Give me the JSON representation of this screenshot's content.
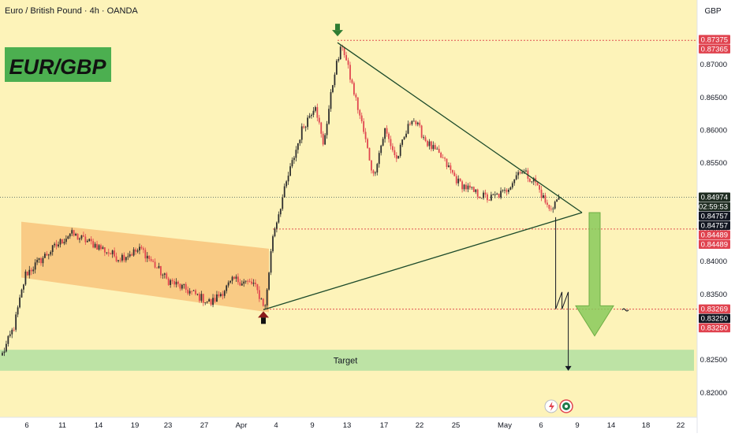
{
  "header": {
    "symbol_title": "Euro / British Pound · 4h · OANDA",
    "currency": "GBP",
    "badge": "EUR/GBP"
  },
  "colors": {
    "background": "#fdf3b9",
    "up": "#2e2e2e",
    "down": "#e04650",
    "channel_fill": "#f8c178",
    "target_zone": "#bde3a5",
    "arrow": "#88c95a",
    "badge_bg": "#4caf50",
    "pivot_up": "#8b1a1a",
    "pivot_down": "#2e7d32",
    "line": "#1c4a2a",
    "dotted_red": "#e05050"
  },
  "chart_data": {
    "type": "candlestick",
    "symbol": "Euro / British Pound",
    "timeframe": "4h",
    "source": "OANDA",
    "ylabel": "GBP",
    "ylim": [
      0.8162,
      0.8798
    ],
    "y_ticks": [
      "0.87000",
      "0.86500",
      "0.86000",
      "0.85500",
      "0.84500",
      "0.84000",
      "0.83500",
      "0.82500",
      "0.82000"
    ],
    "x_ticks": [
      "6",
      "11",
      "14",
      "19",
      "23",
      "27",
      "Apr",
      "4",
      "9",
      "13",
      "17",
      "22",
      "25",
      "May",
      "6",
      "9",
      "14",
      "18",
      "22"
    ],
    "path_points": [
      {
        "i": 0,
        "p": 0.8258
      },
      {
        "i": 6,
        "p": 0.83
      },
      {
        "i": 12,
        "p": 0.838
      },
      {
        "i": 22,
        "p": 0.8408
      },
      {
        "i": 35,
        "p": 0.8442
      },
      {
        "i": 48,
        "p": 0.8425
      },
      {
        "i": 60,
        "p": 0.8405
      },
      {
        "i": 72,
        "p": 0.8418
      },
      {
        "i": 85,
        "p": 0.8372
      },
      {
        "i": 98,
        "p": 0.8352
      },
      {
        "i": 108,
        "p": 0.8336
      },
      {
        "i": 120,
        "p": 0.8372
      },
      {
        "i": 130,
        "p": 0.8365
      },
      {
        "i": 136,
        "p": 0.833
      },
      {
        "i": 140,
        "p": 0.844
      },
      {
        "i": 148,
        "p": 0.853
      },
      {
        "i": 155,
        "p": 0.86
      },
      {
        "i": 162,
        "p": 0.864
      },
      {
        "i": 166,
        "p": 0.8575
      },
      {
        "i": 172,
        "p": 0.869
      },
      {
        "i": 176,
        "p": 0.873
      },
      {
        "i": 180,
        "p": 0.868
      },
      {
        "i": 186,
        "p": 0.861
      },
      {
        "i": 192,
        "p": 0.853
      },
      {
        "i": 198,
        "p": 0.86
      },
      {
        "i": 204,
        "p": 0.8555
      },
      {
        "i": 212,
        "p": 0.862
      },
      {
        "i": 220,
        "p": 0.858
      },
      {
        "i": 228,
        "p": 0.8555
      },
      {
        "i": 236,
        "p": 0.852
      },
      {
        "i": 244,
        "p": 0.8505
      },
      {
        "i": 252,
        "p": 0.8495
      },
      {
        "i": 260,
        "p": 0.8505
      },
      {
        "i": 268,
        "p": 0.854
      },
      {
        "i": 276,
        "p": 0.852
      },
      {
        "i": 283,
        "p": 0.8478
      },
      {
        "i": 288,
        "p": 0.8497
      }
    ],
    "candle_count": 289,
    "price_labels": [
      {
        "text": "0.87375",
        "price": 0.87375,
        "bg": "#e0434f",
        "tag": "red"
      },
      {
        "text": "0.87365",
        "price": 0.87365,
        "bg": "#e0434f",
        "tag": "red"
      },
      {
        "text": "0.84974",
        "price": 0.84974,
        "bg": "#1f2d22",
        "tag": "last"
      },
      {
        "text": "02:59:53",
        "price": 0.84974,
        "bg": "#1f2d22",
        "tag": "countdown"
      },
      {
        "text": "0.84757",
        "price": 0.84757,
        "bg": "#131722",
        "tag": "dark"
      },
      {
        "text": "0.84757",
        "price": 0.84757,
        "bg": "#131722",
        "tag": "dark"
      },
      {
        "text": "0.84489",
        "price": 0.84489,
        "bg": "#e0434f",
        "tag": "red"
      },
      {
        "text": "0.84489",
        "price": 0.84489,
        "bg": "#e0434f",
        "tag": "red"
      },
      {
        "text": "0.83269",
        "price": 0.83269,
        "bg": "#e0434f",
        "tag": "red"
      },
      {
        "text": "0.83250",
        "price": 0.8325,
        "bg": "#131722",
        "tag": "dark"
      },
      {
        "text": "0.83250",
        "price": 0.8325,
        "bg": "#e0434f",
        "tag": "red"
      }
    ],
    "levels": {
      "top_dotted": 0.87365,
      "last_price": 0.84974,
      "support_dotted": 0.84489,
      "low_dotted": 0.83269,
      "triangle_apex": 0.8474,
      "triangle_top": 0.8733,
      "triangle_bottom": 0.8326,
      "target_top": 0.8265,
      "target_bottom": 0.8233,
      "channel_top_left": 0.846,
      "channel_top_right": 0.8419,
      "channel_bottom_left": 0.8375,
      "channel_bottom_right": 0.8322
    },
    "annotations": {
      "target_label": "Target"
    }
  }
}
